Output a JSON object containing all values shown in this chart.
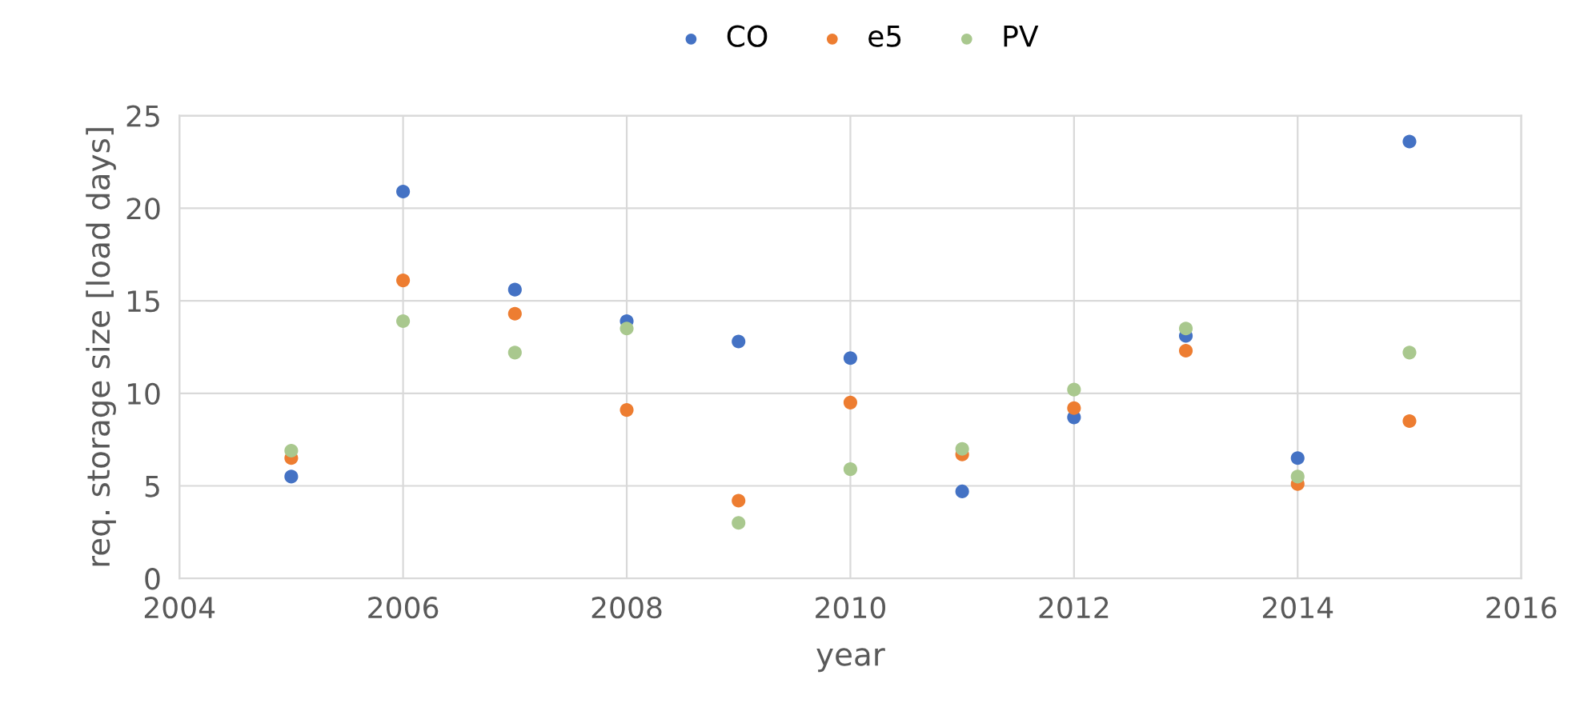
{
  "chart_data": {
    "type": "scatter",
    "xlabel": "year",
    "ylabel": "req. storage size [load days]",
    "x": [
      2005,
      2006,
      2007,
      2008,
      2009,
      2010,
      2011,
      2012,
      2013,
      2014,
      2015
    ],
    "series": [
      {
        "name": "CO",
        "color": "#4472c4",
        "values": [
          5.5,
          20.9,
          15.6,
          13.9,
          12.8,
          11.9,
          4.7,
          8.7,
          13.1,
          6.5,
          23.6
        ]
      },
      {
        "name": "e5",
        "color": "#ed7d31",
        "values": [
          6.5,
          16.1,
          14.3,
          9.1,
          4.2,
          9.5,
          6.7,
          9.2,
          12.3,
          5.1,
          8.5
        ]
      },
      {
        "name": "PV",
        "color": "#a9c88e",
        "values": [
          6.9,
          13.9,
          12.2,
          13.5,
          3.0,
          5.9,
          7.0,
          10.2,
          13.5,
          5.5,
          12.2
        ]
      }
    ],
    "xlim": [
      2004,
      2016
    ],
    "xticks": [
      2004,
      2006,
      2008,
      2010,
      2012,
      2014,
      2016
    ],
    "ylim": [
      0,
      25
    ],
    "yticks": [
      0,
      5,
      10,
      15,
      20,
      25
    ],
    "grid": true,
    "legend": "top",
    "marker": "circle"
  }
}
